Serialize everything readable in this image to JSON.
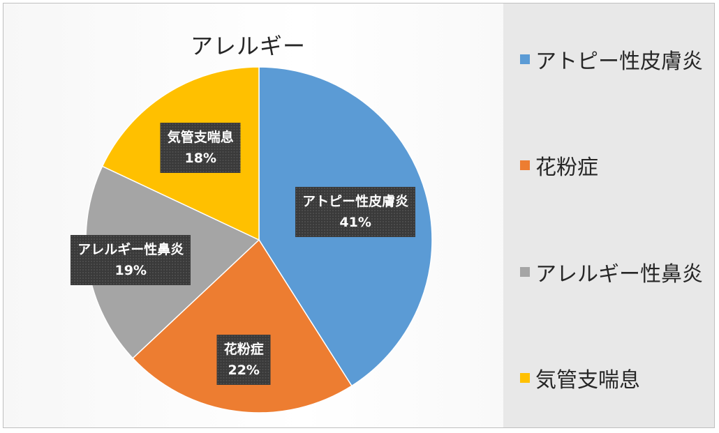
{
  "chart_data": {
    "type": "pie",
    "title": "アレルギー",
    "categories": [
      "アトピー性皮膚炎",
      "花粉症",
      "アレルギー性鼻炎",
      "気管支喘息"
    ],
    "values": [
      41,
      22,
      19,
      18
    ],
    "value_labels": [
      "41%",
      "22%",
      "19%",
      "18%"
    ],
    "colors": [
      "#5B9BD5",
      "#ED7D31",
      "#A5A5A5",
      "#FFC000"
    ],
    "start_angle_deg": 0,
    "direction": "clockwise",
    "legend_position": "right"
  }
}
